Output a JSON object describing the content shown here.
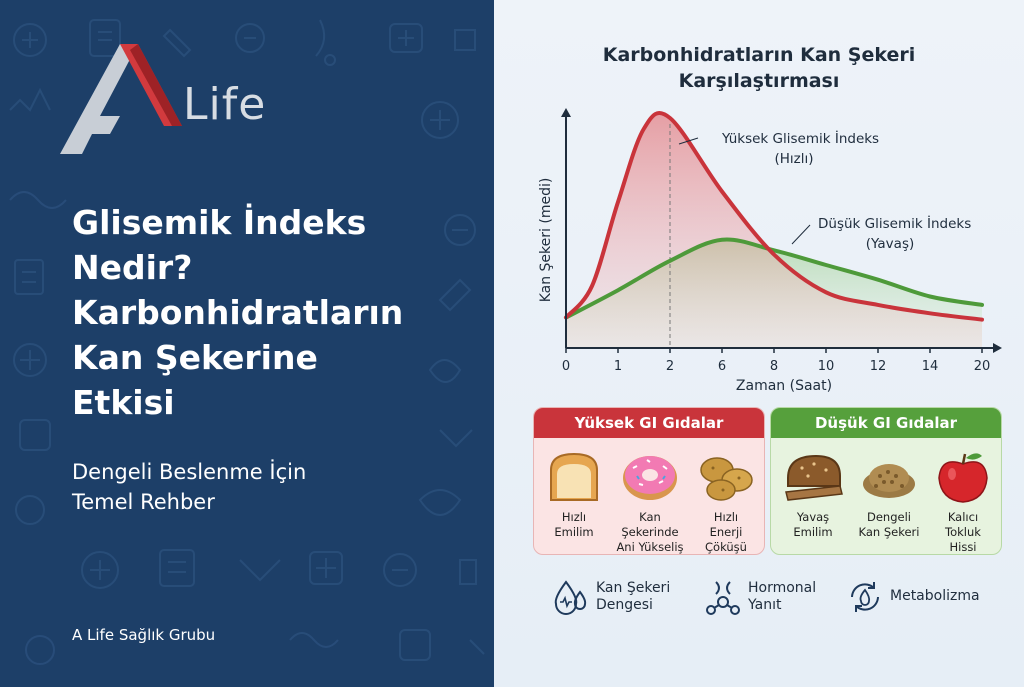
{
  "logo": {
    "text": "Life"
  },
  "headline": {
    "lines": [
      "Glisemik İndeks",
      "Nedir?",
      "Karbonhidratların",
      "Kan Şekerine",
      "Etkisi"
    ]
  },
  "subtitle": {
    "lines": [
      "Dengeli Beslenme İçin",
      "Temel Rehber"
    ]
  },
  "brand": "A Life Sağlık Grubu",
  "chart_data": {
    "type": "line",
    "title_lines": [
      "Karbonhidratların Kan Şekeri",
      "Karşılaştırması"
    ],
    "xlabel": "Zaman (Saat)",
    "ylabel": "Kan Şekeri (medi)",
    "x_ticks": [
      0,
      1,
      2,
      6,
      8,
      10,
      12,
      14,
      20
    ],
    "series": [
      {
        "name_lines": [
          "Yüksek Glisemik İndeks",
          "(Hızlı)"
        ],
        "color": "#c9343b",
        "x": [
          0,
          0.5,
          1,
          1.5,
          2,
          6,
          8,
          10,
          12,
          14,
          20
        ],
        "y": [
          5,
          20,
          60,
          95,
          100,
          65,
          35,
          17,
          11,
          7,
          4
        ]
      },
      {
        "name_lines": [
          "Düşük Glisemik İndeks",
          "(Yavaş)"
        ],
        "color": "#4e9a3a",
        "x": [
          0,
          1,
          2,
          6,
          8,
          10,
          12,
          14,
          20
        ],
        "y": [
          5,
          18,
          32,
          42,
          37,
          30,
          23,
          15,
          11
        ]
      }
    ],
    "peak_marker_x": 2
  },
  "cards": {
    "high": {
      "title": "Yüksek GI Gıdalar",
      "items": [
        {
          "icon": "bread-icon",
          "lines": [
            "Hızlı",
            "Emilim"
          ]
        },
        {
          "icon": "donut-icon",
          "lines": [
            "Kan Şekerinde",
            "Ani Yükseliş"
          ]
        },
        {
          "icon": "potato-icon",
          "lines": [
            "Hızlı",
            "Enerji",
            "Çöküşü"
          ]
        }
      ]
    },
    "low": {
      "title": "Düşük GI Gıdalar",
      "items": [
        {
          "icon": "wholegrain-bread-icon",
          "lines": [
            "Yavaş",
            "Emilim"
          ]
        },
        {
          "icon": "lentils-icon",
          "lines": [
            "Dengeli",
            "Kan Şekeri"
          ]
        },
        {
          "icon": "apple-icon",
          "lines": [
            "Kalıcı",
            "Tokluk",
            "Hissi"
          ]
        }
      ]
    }
  },
  "features": [
    {
      "icon": "blood-drop-icon",
      "lines": [
        "Kan Şekeri",
        "Dengesi"
      ]
    },
    {
      "icon": "hormone-molecule-icon",
      "lines": [
        "Hormonal",
        "Yanıt"
      ]
    },
    {
      "icon": "metabolism-flame-icon",
      "lines": [
        "Metabolizma"
      ]
    }
  ],
  "colors": {
    "navy": "#1d3f68",
    "red": "#c9343b",
    "green": "#56a03c"
  }
}
